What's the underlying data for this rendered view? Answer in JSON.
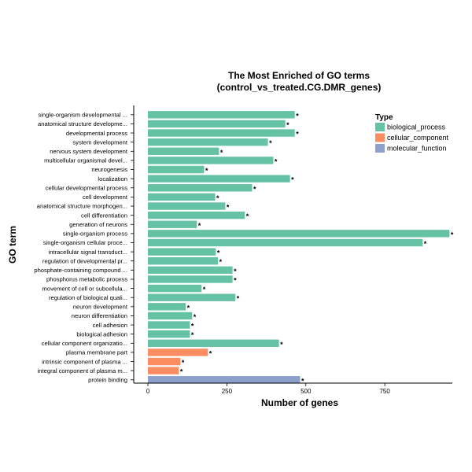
{
  "chart_data": {
    "type": "bar",
    "orientation": "horizontal",
    "title": [
      "The Most Enriched of GO terms",
      "(control_vs_treated.CG.DMR_genes)"
    ],
    "xlabel": "Number of genes",
    "ylabel": "GO term",
    "xlim": [
      0,
      960
    ],
    "xticks": [
      0,
      250,
      500,
      750
    ],
    "grid": false,
    "legend": {
      "title": "Type",
      "position": "top-right",
      "entries": [
        {
          "name": "biological_process",
          "color": "#66c2a5"
        },
        {
          "name": "cellular_component",
          "color": "#fc8d62"
        },
        {
          "name": "molecular_function",
          "color": "#8da0cb"
        }
      ]
    },
    "significance_marker": "*",
    "categories": [
      "single-organism developmental ...",
      "anatomical structure developme...",
      "developmental process",
      "system development",
      "nervous system development",
      "multicellular organismal devel...",
      "neurogenesis",
      "localization",
      "cellular developmental process",
      "cell development",
      "anatomical structure morphogen...",
      "cell differentiation",
      "generation of neurons",
      "single-organism process",
      "single-organism cellular proce...",
      "intracellular signal transduct...",
      "regulation of developmental pr...",
      "phosphate-containing compound ...",
      "phosphorus metabolic process",
      "movement of cell or subcellula...",
      "regulation of biological quali...",
      "neuron development",
      "neuron differentiation",
      "cell adhesion",
      "biological adhesion",
      "cellular component organizatio...",
      "plasma membrane part",
      "intrinsic component of plasma ...",
      "integral component of plasma m...",
      "protein binding"
    ],
    "values": [
      465,
      435,
      465,
      380,
      225,
      397,
      178,
      450,
      330,
      213,
      245,
      307,
      155,
      955,
      870,
      215,
      222,
      268,
      268,
      170,
      277,
      120,
      140,
      133,
      133,
      415,
      190,
      103,
      98,
      482
    ],
    "types": [
      "biological_process",
      "biological_process",
      "biological_process",
      "biological_process",
      "biological_process",
      "biological_process",
      "biological_process",
      "biological_process",
      "biological_process",
      "biological_process",
      "biological_process",
      "biological_process",
      "biological_process",
      "biological_process",
      "biological_process",
      "biological_process",
      "biological_process",
      "biological_process",
      "biological_process",
      "biological_process",
      "biological_process",
      "biological_process",
      "biological_process",
      "biological_process",
      "biological_process",
      "biological_process",
      "cellular_component",
      "cellular_component",
      "cellular_component",
      "molecular_function"
    ]
  }
}
